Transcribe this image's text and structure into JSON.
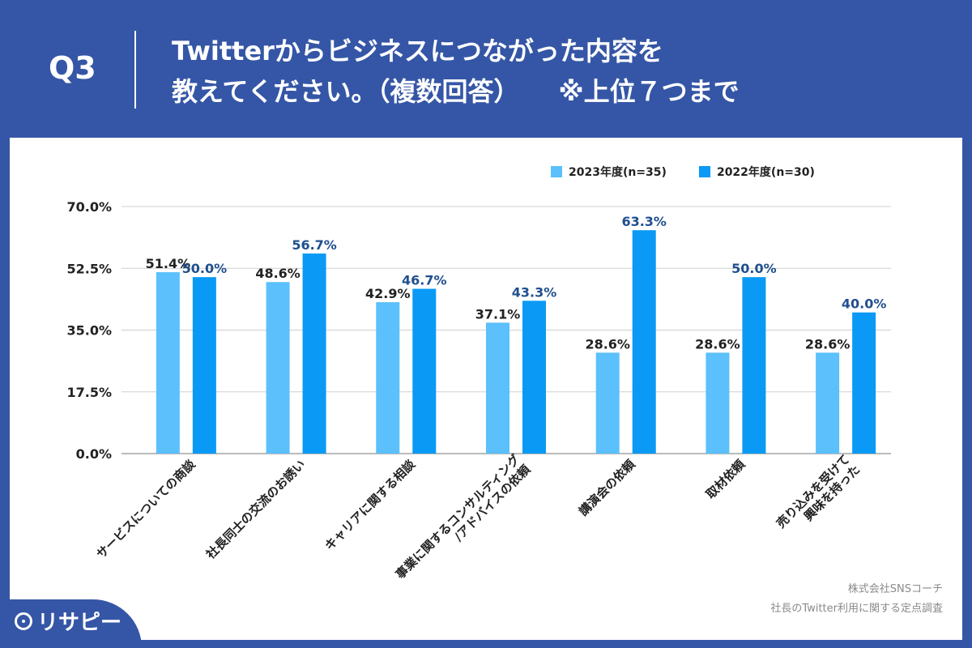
{
  "header": {
    "q_label": "Q3",
    "title_line1": "Twitterからビジネスにつながった内容を",
    "title_line2": "教えてください。（複数回答）",
    "title_note": "※上位７つまで"
  },
  "legend": {
    "series1": "2023年度(n=35)",
    "series2": "2022年度(n=30)"
  },
  "credit": {
    "line1": "株式会社SNSコーチ",
    "line2": "社長のTwitter利用に関する定点調査"
  },
  "logo": {
    "text": "リサピー"
  },
  "colors": {
    "series1": "#5bc0fb",
    "series2": "#0a9af5",
    "header_bg": "#3556a6",
    "label2": "#1f4f8f"
  },
  "chart_data": {
    "type": "bar",
    "categories": [
      "サービスについての商談",
      "社長同士の交流のお誘い",
      "キャリアに関する相談",
      "事業に関するコンサルティング\n/アドバイスの依頼",
      "講演会の依頼",
      "取材依頼",
      "売り込みを受けて\n興味を持った"
    ],
    "series": [
      {
        "name": "2023年度(n=35)",
        "values": [
          51.4,
          48.6,
          42.9,
          37.1,
          28.6,
          28.6,
          28.6
        ]
      },
      {
        "name": "2022年度(n=30)",
        "values": [
          50.0,
          56.7,
          46.7,
          43.3,
          63.3,
          50.0,
          40.0
        ]
      }
    ],
    "yticks": [
      "0.0%",
      "17.5%",
      "35.0%",
      "52.5%",
      "70.0%"
    ],
    "ylim": [
      0,
      70
    ],
    "grid": true,
    "legend_position": "top-right"
  }
}
